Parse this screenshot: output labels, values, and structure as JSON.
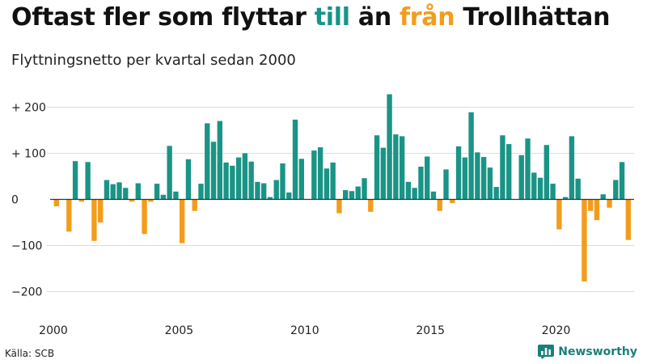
{
  "title": {
    "part1": "Oftast fler som flyttar ",
    "highlight_pos": "till",
    "part2": " än ",
    "highlight_neg": "från",
    "part3": " Trollhättan"
  },
  "subtitle": "Flyttningsnetto per kvartal sedan 2000",
  "source": "Källa: SCB",
  "brand": "Newsworthy",
  "colors": {
    "positive": "#1a9486",
    "negative": "#f39c1c",
    "grid": "#dcdcdc",
    "zero": "#333333"
  },
  "chart_data": {
    "type": "bar",
    "x_start": "2000 Q1",
    "ylim": [
      -220,
      250
    ],
    "yticks": [
      -200,
      -100,
      0,
      100,
      200
    ],
    "ytick_labels": [
      "−200",
      "−100",
      "0",
      "+ 100",
      "+ 200"
    ],
    "xtick_labels": [
      "2000",
      "2005",
      "2010",
      "2015",
      "2020"
    ],
    "grid": true,
    "values": [
      -15,
      0,
      -70,
      83,
      -5,
      81,
      -90,
      -50,
      42,
      33,
      37,
      25,
      -5,
      35,
      -75,
      -5,
      34,
      10,
      116,
      17,
      -95,
      87,
      -25,
      34,
      165,
      125,
      170,
      80,
      73,
      91,
      100,
      82,
      38,
      35,
      5,
      42,
      78,
      15,
      173,
      88,
      0,
      106,
      113,
      67,
      80,
      -30,
      20,
      18,
      28,
      46,
      -27,
      139,
      112,
      228,
      141,
      137,
      38,
      25,
      71,
      93,
      17,
      -25,
      65,
      -8,
      115,
      91,
      189,
      102,
      92,
      69,
      27,
      139,
      120,
      0,
      96,
      132,
      58,
      47,
      118,
      34,
      -65,
      5,
      137,
      45,
      -178,
      -25,
      -45,
      11,
      -18,
      42,
      81,
      -88
    ]
  }
}
